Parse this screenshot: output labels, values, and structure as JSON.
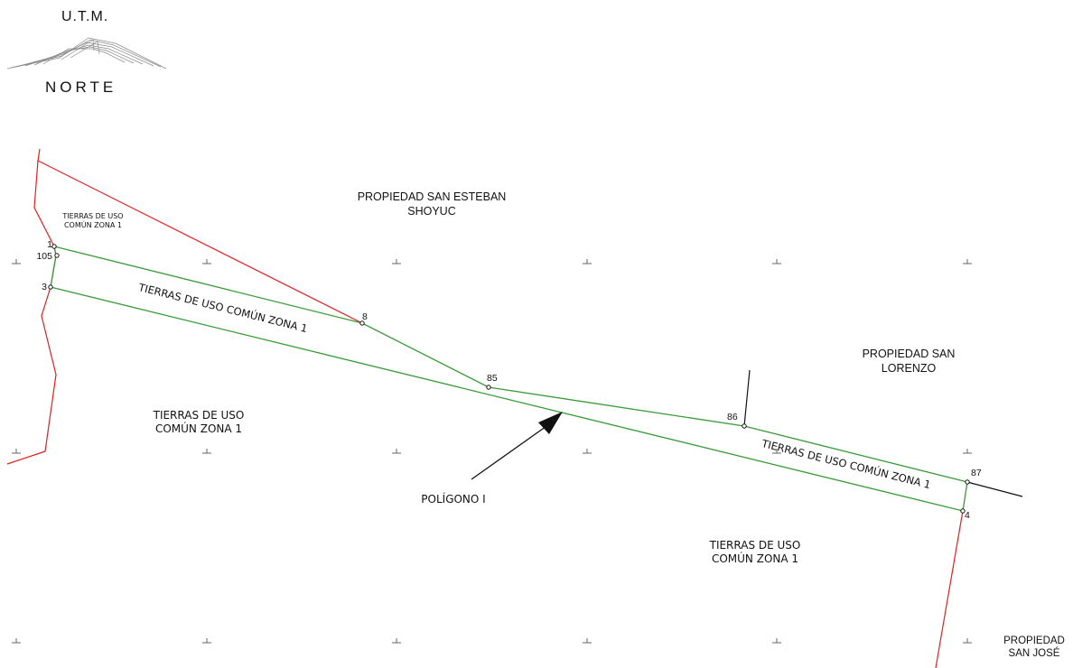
{
  "legend": {
    "title": "U.T.M.",
    "subtitle": "NORTE"
  },
  "areas": {
    "san_esteban": "PROPIEDAD SAN ESTEBAN\nSHOYUC",
    "san_lorenzo": "PROPIEDAD SAN\nLORENZO",
    "san_jose": "PROPIEDAD\nSAN JOSÉ",
    "uso_comun_top": "TIERRAS DE USO\nCOMÚN ZONA 1",
    "uso_comun_left": "TIERRAS DE USO\nCOMÚN ZONA 1",
    "uso_comun_bottom": "TIERRAS DE USO\nCOMÚN ZONA 1"
  },
  "strip_labels": {
    "left": "TIERRAS DE USO COMÚN ZONA 1",
    "right": "TIERRAS DE USO COMÚN ZONA 1"
  },
  "polygon_label": "POLÍGONO I",
  "vertices": {
    "v1": "1",
    "v105": "105",
    "v3": "3",
    "v8": "8",
    "v85": "85",
    "v86": "86",
    "v87": "87",
    "v4": "4"
  },
  "colors": {
    "boundary_red": "#e02020",
    "polygon_green": "#3a9a3a",
    "line_black": "#111111",
    "grid_tick": "#666666"
  }
}
